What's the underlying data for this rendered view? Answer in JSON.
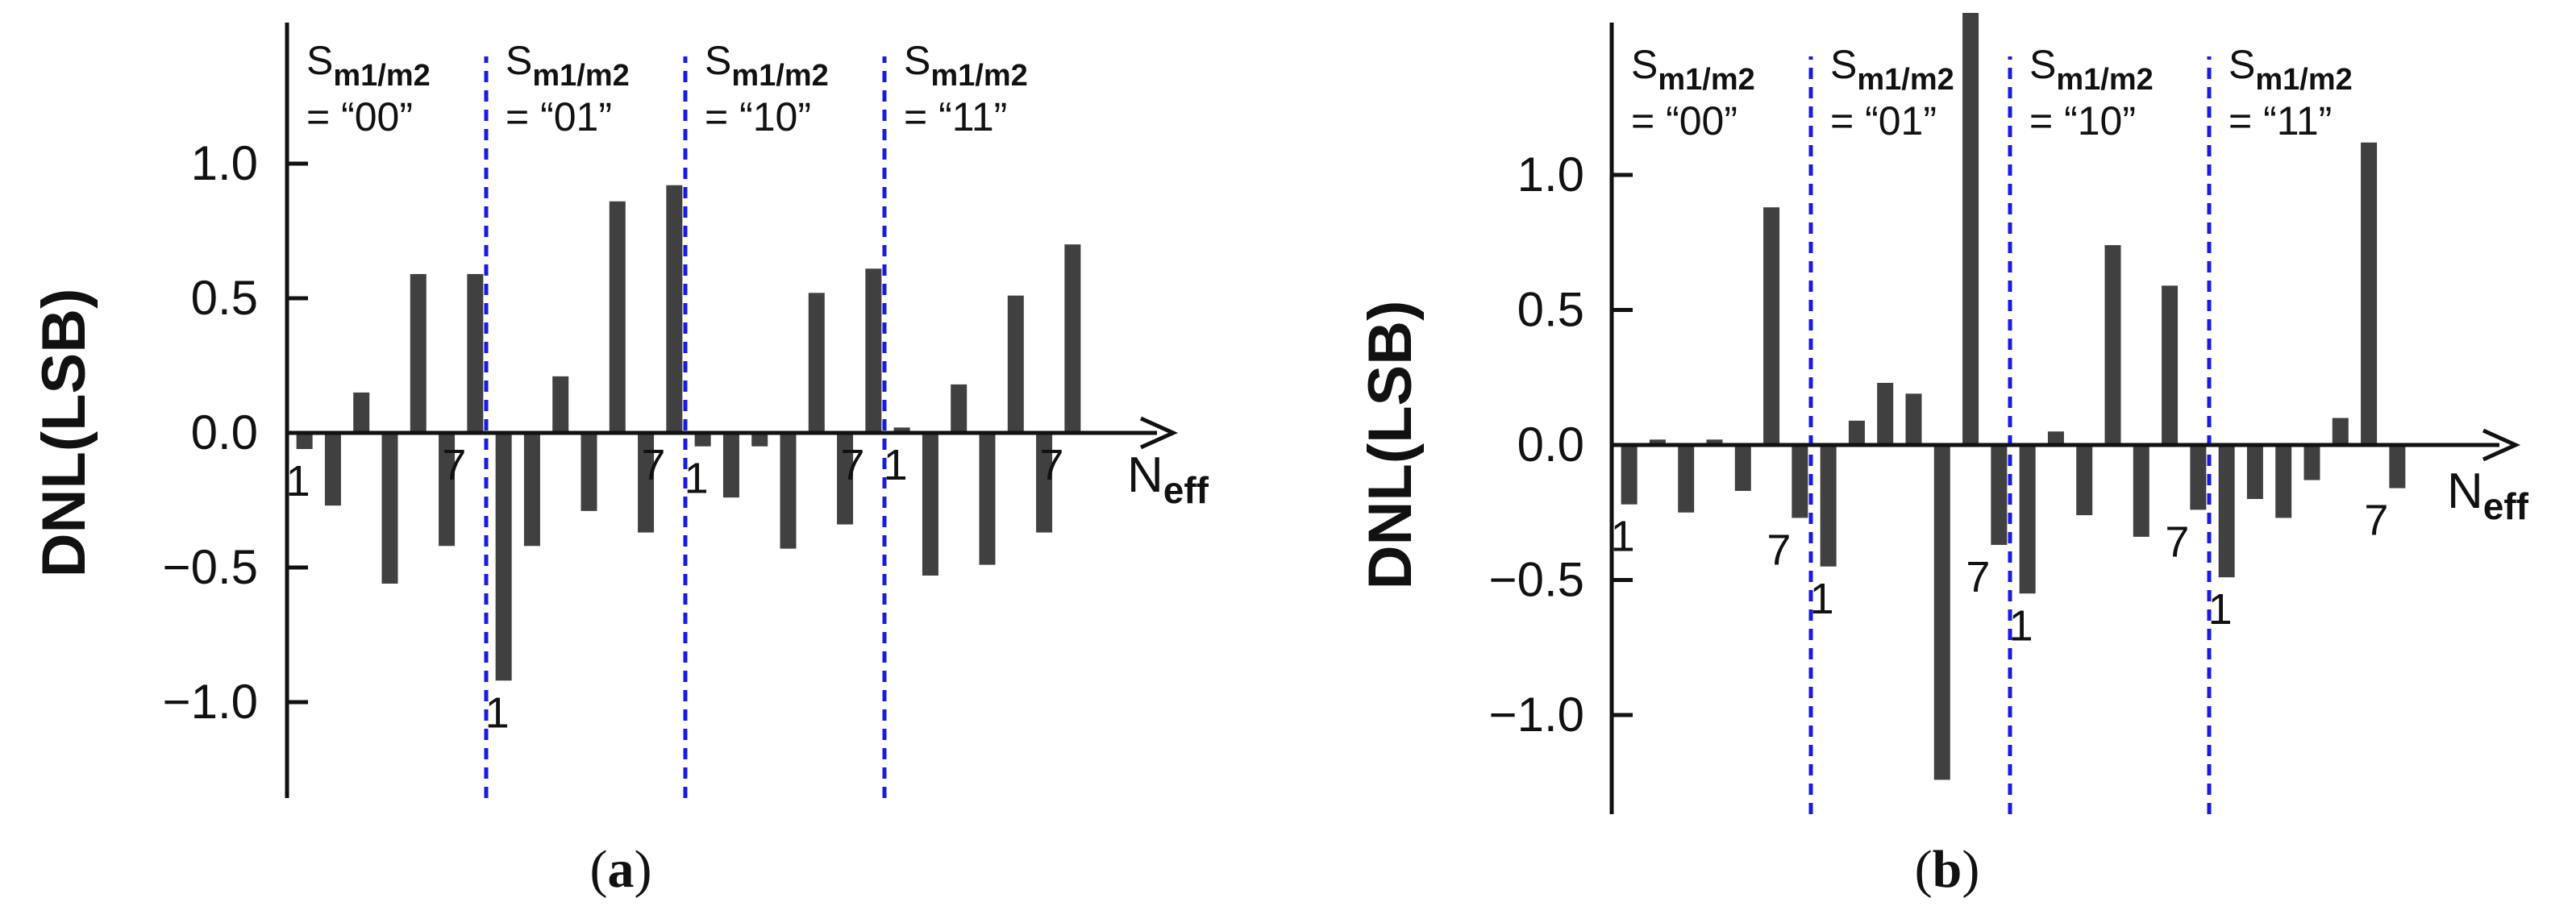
{
  "colors": {
    "bar": "#404040",
    "axis": "#111111",
    "divider": "#1a1ae6",
    "text": "#111111"
  },
  "panels": [
    {
      "caption_letter": "a",
      "chart_data": {
        "type": "bar",
        "ylabel": "DNL(LSB)",
        "xlabel_main": "N",
        "xlabel_sub": "eff",
        "ylim": [
          -1.3,
          1.3
        ],
        "yticks": [
          1.0,
          0.5,
          0.0,
          -0.5,
          -1.0
        ],
        "ytick_labels": [
          "1.0",
          "0.5",
          "0.0",
          "−0.5",
          "−1.0"
        ],
        "groups": [
          {
            "sym": "S",
            "sub": "m1/m2",
            "value_text": "= “00”",
            "first_label": "1",
            "last_label": "7",
            "values": [
              -0.06,
              -0.27,
              0.15,
              -0.56,
              0.59,
              -0.42,
              0.59
            ]
          },
          {
            "sym": "S",
            "sub": "m1/m2",
            "value_text": "= “01”",
            "first_label": "1",
            "last_label": "7",
            "values": [
              -0.92,
              -0.42,
              0.21,
              -0.29,
              0.86,
              -0.37,
              0.92
            ]
          },
          {
            "sym": "S",
            "sub": "m1/m2",
            "value_text": "= “10”",
            "first_label": "1",
            "last_label": "7",
            "values": [
              -0.05,
              -0.24,
              -0.05,
              -0.43,
              0.52,
              -0.34,
              0.61
            ]
          },
          {
            "sym": "S",
            "sub": "m1/m2",
            "value_text": "= “11”",
            "first_label": "1",
            "last_label": "7",
            "values": [
              0.02,
              -0.53,
              0.18,
              -0.49,
              0.51,
              -0.37,
              0.7
            ]
          }
        ]
      }
    },
    {
      "caption_letter": "b",
      "chart_data": {
        "type": "bar",
        "ylabel": "DNL(LSB)",
        "xlabel_main": "N",
        "xlabel_sub": "eff",
        "ylim": [
          -1.35,
          1.55
        ],
        "yticks": [
          1.0,
          0.5,
          0.0,
          -0.5,
          -1.0
        ],
        "ytick_labels": [
          "1.0",
          "0.5",
          "0.0",
          "−0.5",
          "−1.0"
        ],
        "groups": [
          {
            "sym": "S",
            "sub": "m1/m2",
            "value_text": "= “00”",
            "first_label": "1",
            "last_label": "7",
            "values": [
              -0.22,
              0.02,
              -0.25,
              0.02,
              -0.17,
              0.88,
              -0.27
            ]
          },
          {
            "sym": "S",
            "sub": "m1/m2",
            "value_text": "= “01”",
            "first_label": "1",
            "last_label": "7",
            "values": [
              -0.45,
              0.09,
              0.23,
              0.19,
              -1.24,
              1.6,
              -0.37
            ]
          },
          {
            "sym": "S",
            "sub": "m1/m2",
            "value_text": "= “10”",
            "first_label": "1",
            "last_label": "7",
            "values": [
              -0.55,
              0.05,
              -0.26,
              0.74,
              -0.34,
              0.59,
              -0.24
            ]
          },
          {
            "sym": "S",
            "sub": "m1/m2",
            "value_text": "= “11”",
            "first_label": "1",
            "last_label": "7",
            "values": [
              -0.49,
              -0.2,
              -0.27,
              -0.13,
              0.1,
              1.12,
              -0.16
            ]
          }
        ]
      }
    }
  ]
}
